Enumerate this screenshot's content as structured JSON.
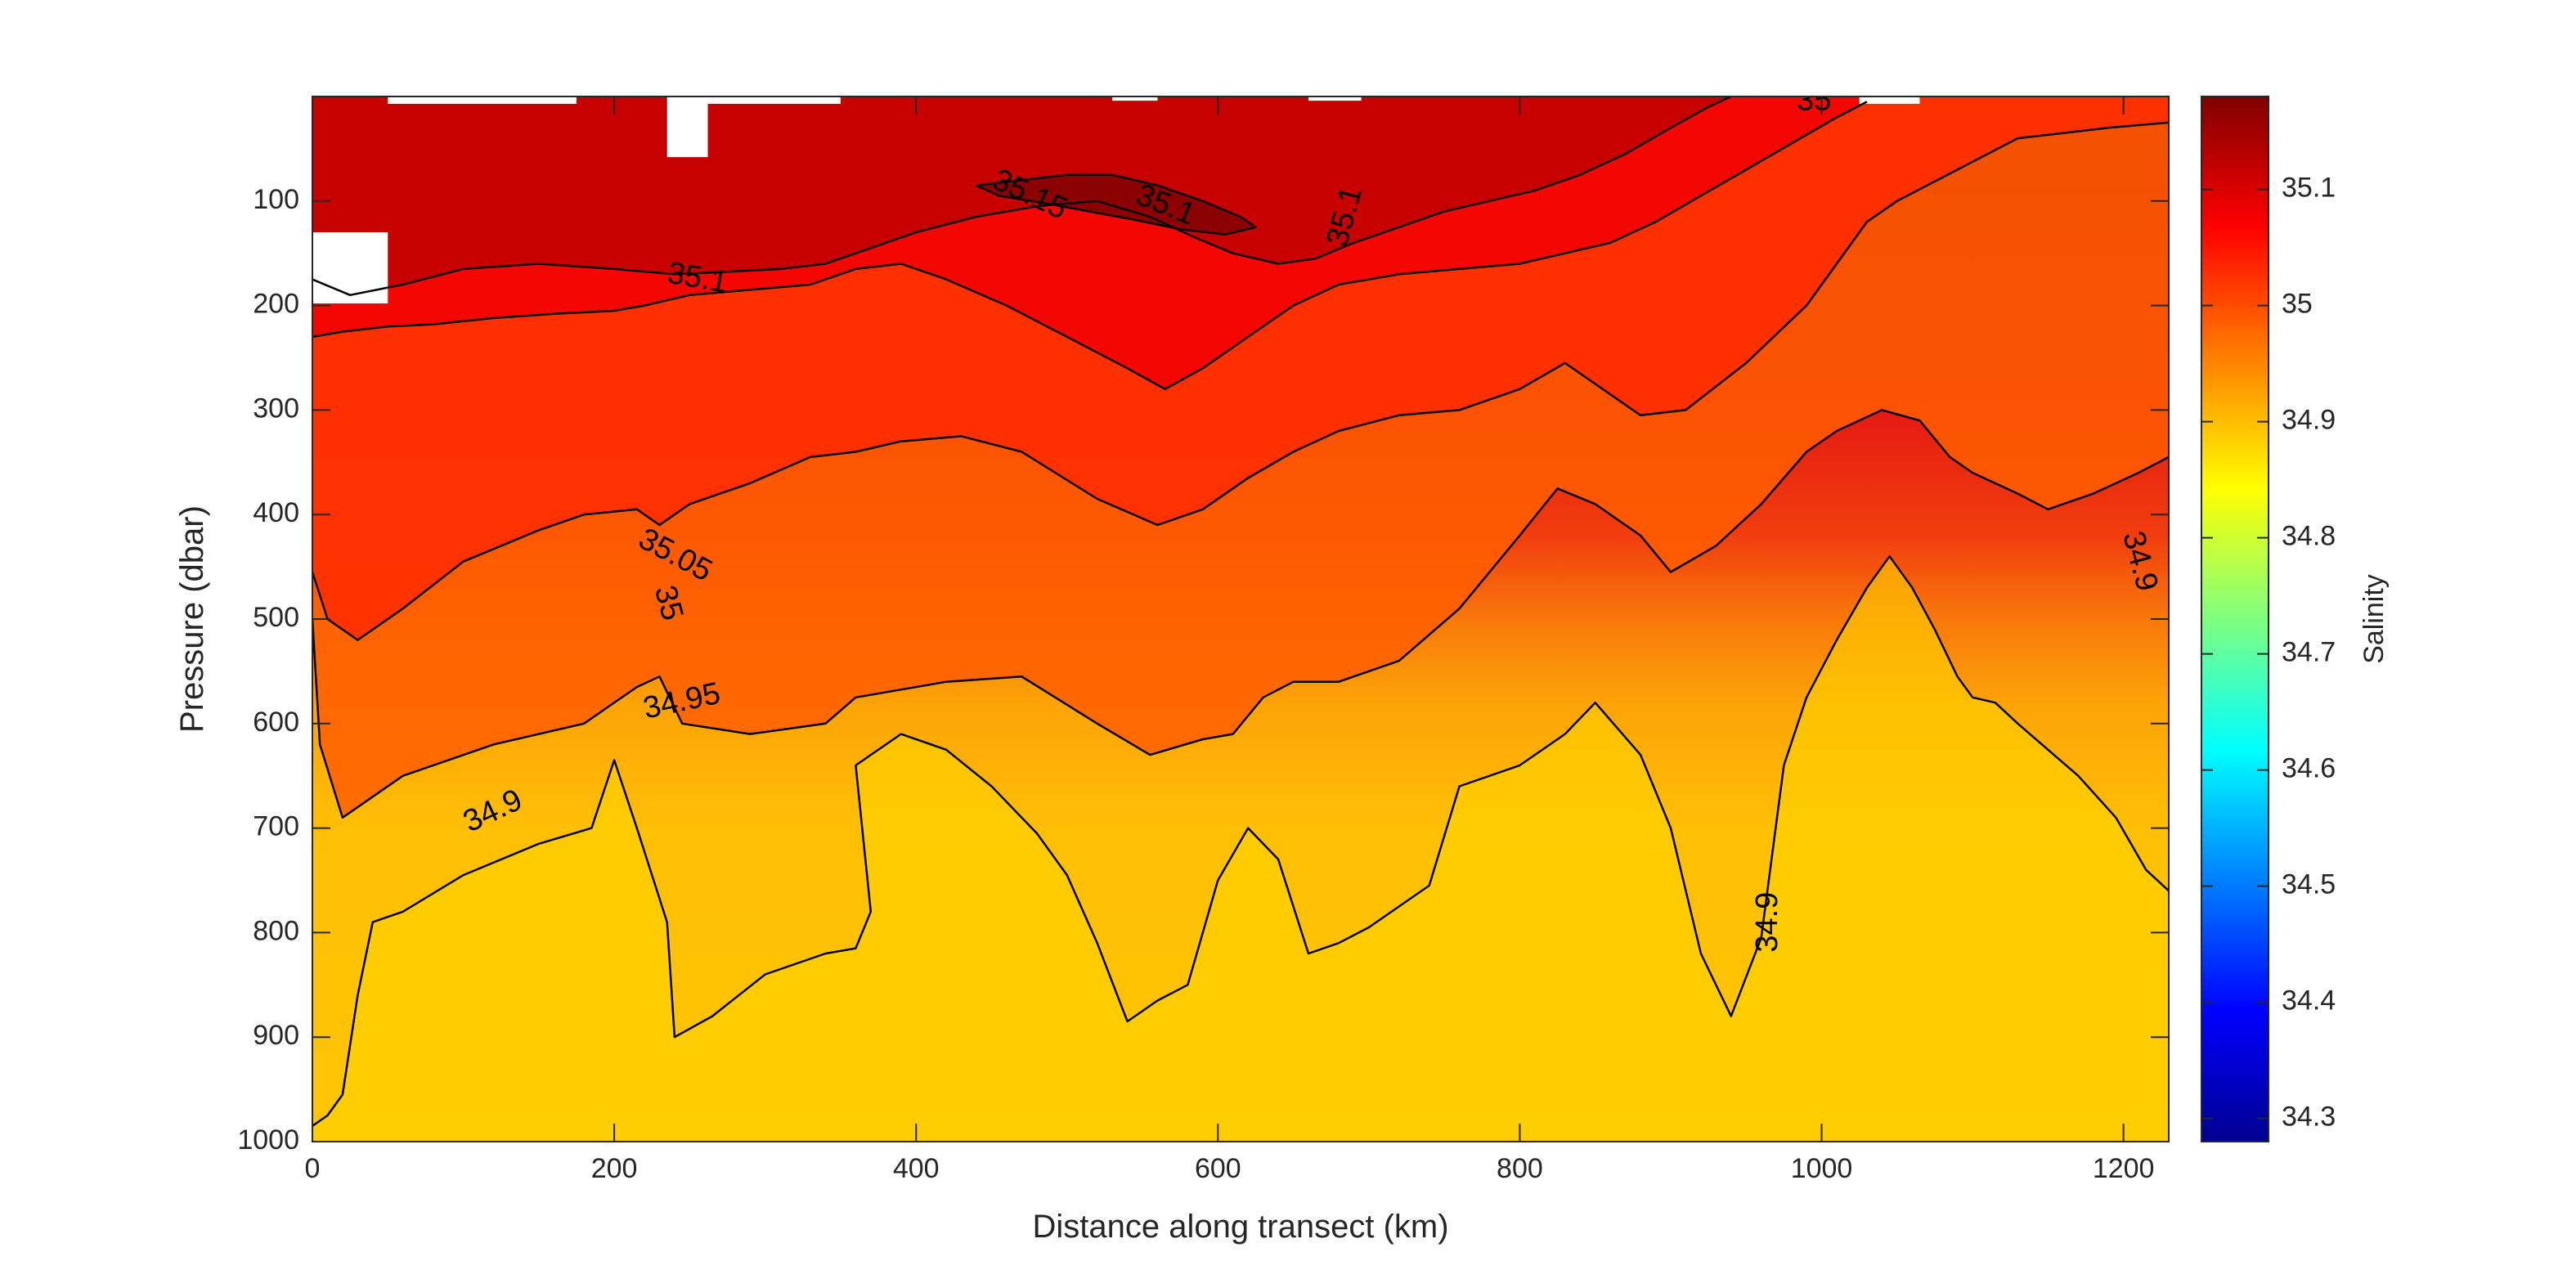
{
  "chart_data": {
    "type": "heatmap",
    "title": "",
    "xlabel": "Distance along transect (km)",
    "ylabel": "Pressure (dbar)",
    "xlim": [
      0,
      1230
    ],
    "ylim": [
      1000,
      0
    ],
    "y_reversed": true,
    "xticks": [
      0,
      200,
      400,
      600,
      800,
      1000,
      1200
    ],
    "yticks": [
      100,
      200,
      300,
      400,
      500,
      600,
      700,
      800,
      900,
      1000
    ],
    "colorbar": {
      "label": "Salinity",
      "colormap": "jet",
      "limits": [
        34.28,
        35.18
      ],
      "ticks": [
        34.3,
        34.4,
        34.5,
        34.6,
        34.7,
        34.8,
        34.9,
        35,
        35.1
      ],
      "tick_labels": [
        "34.3",
        "34.4",
        "34.5",
        "34.6",
        "34.7",
        "34.8",
        "34.9",
        "35",
        "35.1"
      ]
    },
    "contours": [
      {
        "level": 34.9,
        "points": [
          [
            0,
            985
          ],
          [
            10,
            975
          ],
          [
            20,
            955
          ],
          [
            30,
            860
          ],
          [
            40,
            790
          ],
          [
            60,
            780
          ],
          [
            100,
            745
          ],
          [
            150,
            715
          ],
          [
            185,
            700
          ],
          [
            200,
            635
          ],
          [
            215,
            700
          ],
          [
            235,
            790
          ],
          [
            240,
            900
          ],
          [
            265,
            880
          ],
          [
            300,
            840
          ],
          [
            340,
            820
          ],
          [
            360,
            815
          ],
          [
            370,
            780
          ],
          [
            360,
            640
          ],
          [
            390,
            610
          ],
          [
            420,
            625
          ],
          [
            450,
            660
          ],
          [
            480,
            705
          ],
          [
            500,
            745
          ],
          [
            520,
            810
          ],
          [
            540,
            885
          ],
          [
            560,
            865
          ],
          [
            580,
            850
          ],
          [
            600,
            750
          ],
          [
            620,
            700
          ],
          [
            640,
            730
          ],
          [
            660,
            820
          ],
          [
            680,
            810
          ],
          [
            700,
            795
          ],
          [
            740,
            755
          ],
          [
            760,
            660
          ],
          [
            800,
            640
          ],
          [
            830,
            610
          ],
          [
            850,
            580
          ],
          [
            880,
            630
          ],
          [
            900,
            700
          ],
          [
            920,
            820
          ],
          [
            940,
            880
          ],
          [
            960,
            805
          ],
          [
            975,
            640
          ],
          [
            990,
            575
          ],
          [
            1010,
            520
          ],
          [
            1030,
            470
          ],
          [
            1045,
            440
          ],
          [
            1060,
            470
          ],
          [
            1075,
            510
          ],
          [
            1090,
            555
          ],
          [
            1100,
            575
          ],
          [
            1115,
            580
          ],
          [
            1130,
            600
          ],
          [
            1150,
            625
          ],
          [
            1170,
            650
          ],
          [
            1195,
            690
          ],
          [
            1215,
            740
          ],
          [
            1230,
            760
          ]
        ]
      },
      {
        "level": 34.95,
        "points": [
          [
            0,
            500
          ],
          [
            5,
            620
          ],
          [
            20,
            690
          ],
          [
            60,
            650
          ],
          [
            120,
            620
          ],
          [
            180,
            600
          ],
          [
            215,
            565
          ],
          [
            230,
            555
          ],
          [
            245,
            600
          ],
          [
            290,
            610
          ],
          [
            340,
            600
          ],
          [
            360,
            575
          ],
          [
            420,
            560
          ],
          [
            470,
            555
          ],
          [
            520,
            600
          ],
          [
            555,
            630
          ],
          [
            590,
            615
          ],
          [
            610,
            610
          ],
          [
            630,
            575
          ],
          [
            650,
            560
          ],
          [
            680,
            560
          ],
          [
            720,
            540
          ],
          [
            760,
            490
          ],
          [
            800,
            420
          ],
          [
            825,
            375
          ],
          [
            850,
            390
          ],
          [
            880,
            420
          ],
          [
            900,
            455
          ],
          [
            930,
            430
          ],
          [
            960,
            390
          ],
          [
            990,
            340
          ],
          [
            1010,
            320
          ],
          [
            1040,
            300
          ],
          [
            1065,
            310
          ],
          [
            1085,
            345
          ],
          [
            1100,
            360
          ],
          [
            1130,
            380
          ],
          [
            1150,
            395
          ],
          [
            1180,
            380
          ],
          [
            1210,
            360
          ],
          [
            1230,
            345
          ]
        ]
      },
      {
        "level": 35.0,
        "points": [
          [
            0,
            455
          ],
          [
            10,
            500
          ],
          [
            30,
            520
          ],
          [
            60,
            490
          ],
          [
            100,
            445
          ],
          [
            150,
            415
          ],
          [
            180,
            400
          ],
          [
            215,
            395
          ],
          [
            230,
            410
          ],
          [
            250,
            390
          ],
          [
            290,
            370
          ],
          [
            330,
            345
          ],
          [
            360,
            340
          ],
          [
            390,
            330
          ],
          [
            430,
            325
          ],
          [
            470,
            340
          ],
          [
            520,
            385
          ],
          [
            560,
            410
          ],
          [
            590,
            395
          ],
          [
            620,
            365
          ],
          [
            650,
            340
          ],
          [
            680,
            320
          ],
          [
            720,
            305
          ],
          [
            760,
            300
          ],
          [
            800,
            280
          ],
          [
            830,
            255
          ],
          [
            850,
            275
          ],
          [
            880,
            305
          ],
          [
            910,
            300
          ],
          [
            950,
            255
          ],
          [
            990,
            200
          ],
          [
            1010,
            160
          ],
          [
            1030,
            120
          ],
          [
            1050,
            100
          ],
          [
            1070,
            85
          ],
          [
            1090,
            70
          ],
          [
            1110,
            55
          ],
          [
            1130,
            40
          ],
          [
            1160,
            35
          ],
          [
            1190,
            30
          ],
          [
            1230,
            25
          ]
        ]
      },
      {
        "level": 35.05,
        "points": [
          [
            0,
            230
          ],
          [
            20,
            225
          ],
          [
            50,
            220
          ],
          [
            80,
            218
          ],
          [
            120,
            212
          ],
          [
            160,
            208
          ],
          [
            200,
            205
          ],
          [
            220,
            200
          ],
          [
            250,
            190
          ],
          [
            290,
            185
          ],
          [
            330,
            180
          ],
          [
            360,
            165
          ],
          [
            390,
            160
          ],
          [
            420,
            175
          ],
          [
            460,
            200
          ],
          [
            500,
            230
          ],
          [
            540,
            260
          ],
          [
            565,
            280
          ],
          [
            590,
            260
          ],
          [
            620,
            230
          ],
          [
            650,
            200
          ],
          [
            680,
            180
          ],
          [
            720,
            170
          ],
          [
            760,
            165
          ],
          [
            800,
            160
          ],
          [
            830,
            150
          ],
          [
            860,
            140
          ],
          [
            890,
            120
          ],
          [
            920,
            95
          ],
          [
            950,
            70
          ],
          [
            980,
            45
          ],
          [
            1010,
            20
          ],
          [
            1030,
            5
          ]
        ]
      },
      {
        "level": 35.1,
        "points": [
          [
            0,
            175
          ],
          [
            25,
            190
          ],
          [
            60,
            180
          ],
          [
            100,
            165
          ],
          [
            150,
            160
          ],
          [
            200,
            165
          ],
          [
            240,
            170
          ],
          [
            270,
            168
          ],
          [
            310,
            165
          ],
          [
            340,
            160
          ],
          [
            370,
            145
          ],
          [
            400,
            130
          ],
          [
            440,
            115
          ],
          [
            480,
            105
          ],
          [
            520,
            100
          ],
          [
            555,
            115
          ],
          [
            585,
            135
          ],
          [
            610,
            150
          ],
          [
            640,
            160
          ],
          [
            665,
            155
          ],
          [
            690,
            140
          ],
          [
            720,
            125
          ],
          [
            750,
            110
          ],
          [
            780,
            100
          ],
          [
            810,
            90
          ],
          [
            840,
            75
          ],
          [
            870,
            55
          ],
          [
            900,
            30
          ],
          [
            925,
            10
          ],
          [
            940,
            0
          ]
        ]
      },
      {
        "level": 35.15,
        "points": [
          [
            440,
            85
          ],
          [
            470,
            80
          ],
          [
            500,
            75
          ],
          [
            530,
            75
          ],
          [
            560,
            85
          ],
          [
            590,
            100
          ],
          [
            615,
            115
          ],
          [
            625,
            125
          ],
          [
            605,
            132
          ],
          [
            575,
            127
          ],
          [
            545,
            118
          ],
          [
            515,
            110
          ],
          [
            485,
            102
          ],
          [
            455,
            95
          ],
          [
            440,
            85
          ]
        ]
      }
    ],
    "contour_labels": [
      {
        "text": "34.9",
        "x": 120,
        "y": 685,
        "angle": -25
      },
      {
        "text": "34.95",
        "x": 245,
        "y": 580,
        "angle": -12
      },
      {
        "text": "35",
        "x": 235,
        "y": 485,
        "angle": 75
      },
      {
        "text": "35.05",
        "x": 240,
        "y": 440,
        "angle": 28
      },
      {
        "text": "35.1",
        "x": 255,
        "y": 175,
        "angle": 10
      },
      {
        "text": "35.15",
        "x": 475,
        "y": 95,
        "angle": 25
      },
      {
        "text": "35.1",
        "x": 565,
        "y": 105,
        "angle": 22
      },
      {
        "text": "35.1",
        "x": 685,
        "y": 115,
        "angle": -75
      },
      {
        "text": "35",
        "x": 995,
        "y": 5,
        "angle": 0
      },
      {
        "text": "34.9",
        "x": 965,
        "y": 790,
        "angle": -90
      },
      {
        "text": "34.9",
        "x": 1210,
        "y": 445,
        "angle": 75
      }
    ],
    "missing_data_patches": [
      {
        "x0": 0,
        "x1": 50,
        "y0": 130,
        "y1": 198
      },
      {
        "x0": 235,
        "x1": 262,
        "y0": 0,
        "y1": 58
      },
      {
        "x0": 50,
        "x1": 175,
        "y0": 0,
        "y1": 7
      },
      {
        "x0": 262,
        "x1": 350,
        "y0": 0,
        "y1": 7
      },
      {
        "x0": 530,
        "x1": 560,
        "y0": 0,
        "y1": 4
      },
      {
        "x0": 660,
        "x1": 695,
        "y0": 0,
        "y1": 4
      },
      {
        "x0": 1025,
        "x1": 1065,
        "y0": 0,
        "y1": 7
      }
    ]
  }
}
